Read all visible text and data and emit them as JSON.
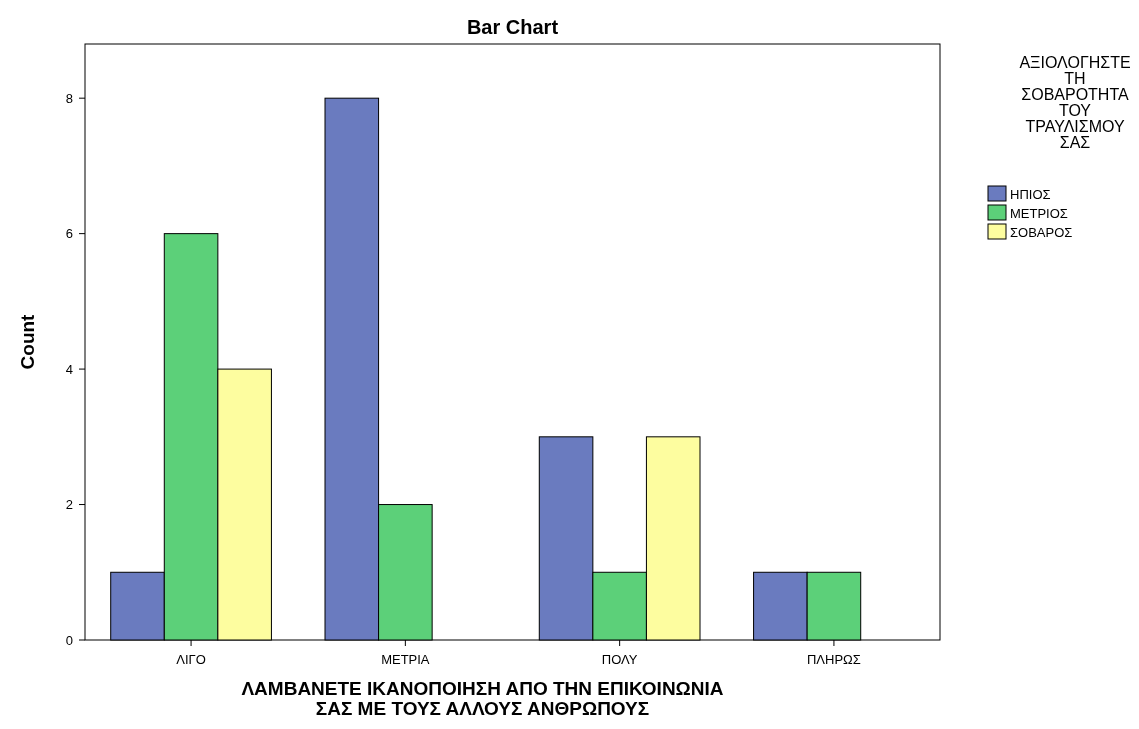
{
  "chart_data": {
    "type": "bar",
    "title": "Bar Chart",
    "xlabel": "ΛΑΜΒΑΝΕΤΕ ΙΚΑΝΟΠΟΙΗΣΗ ΑΠΟ ΤΗΝ ΕΠΙΚΟΙΝΩΝΙΑ ΣΑΣ ΜΕ ΤΟΥΣ ΑΛΛΟΥΣ ΑΝΘΡΩΠΟΥΣ",
    "ylabel": "Count",
    "legend_title": "ΑΞΙΟΛΟΓΗΣΤΕ ΤΗ ΣΟΒΑΡΟΤΗΤΑ ΤΟΥ ΤΡΑΥΛΙΣΜΟΥ ΣΑΣ",
    "categories": [
      "ΛΙΓΟ",
      "ΜΕΤΡΙΑ",
      "ΠΟΛΥ",
      "ΠΛΗΡΩΣ"
    ],
    "series": [
      {
        "name": "ΗΠΙΟΣ",
        "color": "#6a7bbf",
        "values": [
          1,
          8,
          3,
          1
        ]
      },
      {
        "name": "ΜΕΤΡΙΟΣ",
        "color": "#5cd079",
        "values": [
          6,
          2,
          1,
          1
        ]
      },
      {
        "name": "ΣΟΒΑΡΟΣ",
        "color": "#fdfd9f",
        "values": [
          4,
          null,
          3,
          null
        ]
      }
    ],
    "ylim": [
      0,
      8.8
    ],
    "yticks": [
      0,
      2,
      4,
      6,
      8
    ],
    "grid": false,
    "legend": "right"
  }
}
